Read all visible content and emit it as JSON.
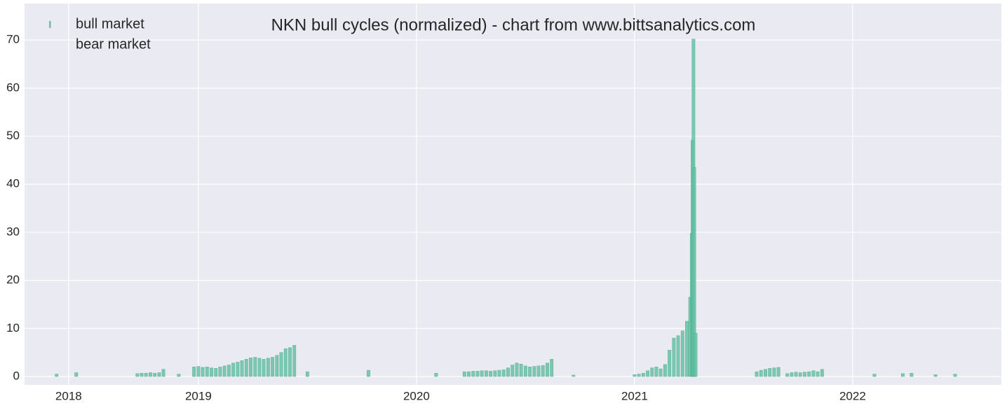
{
  "chart_data": {
    "type": "bar",
    "title": "NKN bull cycles (normalized)  - chart from www.bittsanalytics.com",
    "series": [
      {
        "name": "bull market",
        "color": "#66c2a5",
        "x": [
          2018.35,
          2018.44,
          2018.72,
          2018.74,
          2018.76,
          2018.78,
          2018.8,
          2018.82,
          2018.84,
          2018.91,
          2018.98,
          2019.0,
          2019.02,
          2019.04,
          2019.06,
          2019.08,
          2019.1,
          2019.12,
          2019.14,
          2019.16,
          2019.18,
          2019.2,
          2019.22,
          2019.24,
          2019.26,
          2019.28,
          2019.3,
          2019.32,
          2019.34,
          2019.36,
          2019.38,
          2019.4,
          2019.42,
          2019.44,
          2019.5,
          2019.78,
          2020.09,
          2020.22,
          2020.24,
          2020.26,
          2020.28,
          2020.3,
          2020.32,
          2020.34,
          2020.36,
          2020.38,
          2020.4,
          2020.42,
          2020.44,
          2020.46,
          2020.48,
          2020.5,
          2020.52,
          2020.54,
          2020.56,
          2020.58,
          2020.6,
          2020.62,
          2020.72,
          2021.0,
          2021.02,
          2021.04,
          2021.06,
          2021.08,
          2021.1,
          2021.12,
          2021.14,
          2021.16,
          2021.18,
          2021.2,
          2021.22,
          2021.24,
          2021.255,
          2021.262,
          2021.266,
          2021.27,
          2021.274,
          2021.28,
          2021.56,
          2021.58,
          2021.6,
          2021.62,
          2021.64,
          2021.66,
          2021.7,
          2021.72,
          2021.74,
          2021.76,
          2021.78,
          2021.8,
          2021.82,
          2021.84,
          2021.86,
          2022.1,
          2022.23,
          2022.27,
          2022.38,
          2022.47
        ],
        "values": [
          0.5,
          0.8,
          0.6,
          0.7,
          0.7,
          0.8,
          0.7,
          0.8,
          1.5,
          0.5,
          2.0,
          2.1,
          1.9,
          2.0,
          1.8,
          1.7,
          2.0,
          2.2,
          2.4,
          2.8,
          3.0,
          3.3,
          3.6,
          3.9,
          4.0,
          3.8,
          3.6,
          3.8,
          4.0,
          4.4,
          5.0,
          5.8,
          6.0,
          6.5,
          1.0,
          1.3,
          0.7,
          1.0,
          1.0,
          1.1,
          1.1,
          1.2,
          1.2,
          1.1,
          1.2,
          1.3,
          1.4,
          1.8,
          2.4,
          2.8,
          2.6,
          2.2,
          2.0,
          2.1,
          2.2,
          2.3,
          2.8,
          3.6,
          0.3,
          0.4,
          0.5,
          0.7,
          1.2,
          1.8,
          2.0,
          1.6,
          2.5,
          5.5,
          8.0,
          8.5,
          9.5,
          11.5,
          16.5,
          29.8,
          49.2,
          70.2,
          43.5,
          9.0,
          1.0,
          1.3,
          1.5,
          1.7,
          1.8,
          1.9,
          0.6,
          0.8,
          0.9,
          0.8,
          0.9,
          1.0,
          1.2,
          1.0,
          1.5,
          0.5,
          0.6,
          0.7,
          0.4,
          0.5
        ]
      },
      {
        "name": "bear market",
        "color": "#eaeaf2",
        "x": [],
        "values": []
      }
    ],
    "xlim": [
      2018.203,
      2022.682
    ],
    "xticks": [
      {
        "value": 2018.405,
        "label": "2018"
      },
      {
        "value": 2019,
        "label": "2019"
      },
      {
        "value": 2020,
        "label": "2020"
      },
      {
        "value": 2021,
        "label": "2021"
      },
      {
        "value": 2022,
        "label": "2022"
      }
    ],
    "ylim": [
      -1.75,
      77.6
    ],
    "yticks": [
      0,
      10,
      20,
      30,
      40,
      50,
      60,
      70
    ],
    "grid": true,
    "legend": "upper left"
  }
}
